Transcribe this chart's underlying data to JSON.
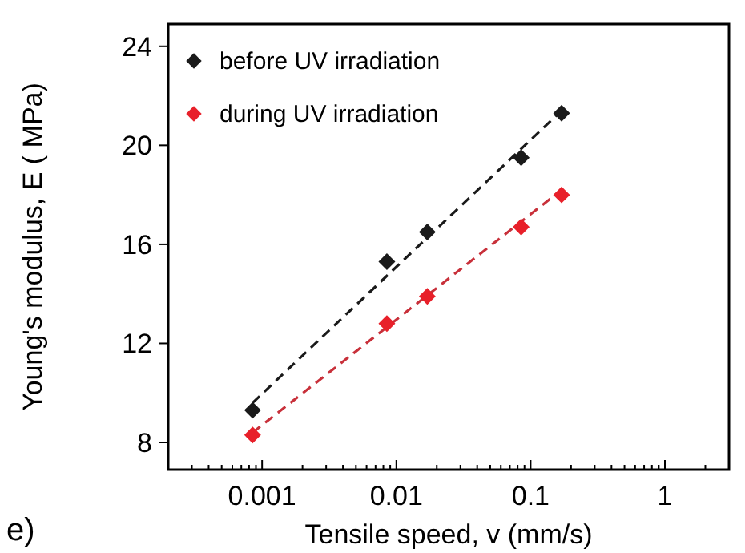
{
  "chart_data": {
    "type": "scatter",
    "xlabel": "Tensile speed, v (mm/s)",
    "ylabel": "Young's modulus, E ( MPa)",
    "annotations": [
      "e)"
    ],
    "log": "x",
    "xlim": [
      0.0002,
      3
    ],
    "ylim": [
      6.9,
      24.9
    ],
    "xticks": [
      {
        "value": 0.0002,
        "label": null
      },
      {
        "value": 0.0003,
        "label": null
      },
      {
        "value": 0.0004,
        "label": null
      },
      {
        "value": 0.0005,
        "label": null
      },
      {
        "value": 0.0006,
        "label": null
      },
      {
        "value": 0.0007,
        "label": null
      },
      {
        "value": 0.0008,
        "label": null
      },
      {
        "value": 0.0009,
        "label": null
      },
      0.001,
      {
        "value": 0.002,
        "label": null
      },
      {
        "value": 0.003,
        "label": null
      },
      {
        "value": 0.004,
        "label": null
      },
      {
        "value": 0.005,
        "label": null
      },
      {
        "value": 0.006,
        "label": null
      },
      {
        "value": 0.007,
        "label": null
      },
      {
        "value": 0.008,
        "label": null
      },
      {
        "value": 0.009,
        "label": null
      },
      0.01,
      {
        "value": 0.02,
        "label": null
      },
      {
        "value": 0.03,
        "label": null
      },
      {
        "value": 0.04,
        "label": null
      },
      {
        "value": 0.05,
        "label": null
      },
      {
        "value": 0.06,
        "label": null
      },
      {
        "value": 0.07,
        "label": null
      },
      {
        "value": 0.08,
        "label": null
      },
      {
        "value": 0.09,
        "label": null
      },
      0.1,
      {
        "value": 0.2,
        "label": null
      },
      {
        "value": 0.3,
        "label": null
      },
      {
        "value": 0.4,
        "label": null
      },
      {
        "value": 0.5,
        "label": null
      },
      {
        "value": 0.6,
        "label": null
      },
      {
        "value": 0.7,
        "label": null
      },
      {
        "value": 0.8,
        "label": null
      },
      {
        "value": 0.9,
        "label": null
      },
      1,
      {
        "value": 2,
        "label": null
      },
      {
        "value": 3,
        "label": null
      }
    ],
    "yticks": [
      8,
      12,
      16,
      20,
      24
    ],
    "legend": "top left",
    "marker": "diamond",
    "series": [
      {
        "name": "before UV irradiation",
        "color": "#1a1a1a",
        "x": [
          0.00085,
          0.0085,
          0.017,
          0.085,
          0.17
        ],
        "values": [
          9.3,
          15.3,
          16.5,
          19.5,
          21.3
        ]
      },
      {
        "name": "during UV irradiation",
        "color": "#e8202a",
        "x": [
          0.00085,
          0.0085,
          0.017,
          0.085,
          0.17
        ],
        "values": [
          8.3,
          12.8,
          13.9,
          16.7,
          18.0
        ]
      },
      {
        "type": "line",
        "line_style": "dashed",
        "marker": "none",
        "color": "#1a1a1a",
        "x": [
          0.00085,
          0.17
        ],
        "values": [
          9.6,
          21.4
        ]
      },
      {
        "type": "line",
        "line_style": "dashed",
        "marker": "none",
        "color": "#c8303a",
        "x": [
          0.00085,
          0.17
        ],
        "values": [
          8.4,
          18.2
        ]
      }
    ]
  }
}
